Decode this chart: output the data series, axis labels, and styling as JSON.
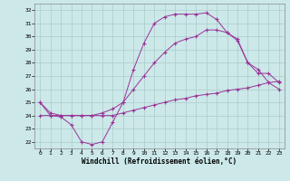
{
  "xlabel": "Windchill (Refroidissement éolien,°C)",
  "bg_color": "#cce8e8",
  "grid_color": "#aacccc",
  "line_color": "#993399",
  "ylim": [
    21.5,
    32.5
  ],
  "yticks": [
    22,
    23,
    24,
    25,
    26,
    27,
    28,
    29,
    30,
    31,
    32
  ],
  "xlim": [
    -0.5,
    23.5
  ],
  "xticks": [
    0,
    1,
    2,
    3,
    4,
    5,
    6,
    7,
    8,
    9,
    10,
    11,
    12,
    13,
    14,
    15,
    16,
    17,
    18,
    19,
    20,
    21,
    22,
    23
  ],
  "curve_a_x": [
    0,
    1,
    2,
    3,
    4,
    5,
    6,
    7,
    8,
    9,
    10,
    11,
    12,
    13,
    14,
    15,
    16,
    17,
    18,
    19,
    20,
    21,
    22,
    23
  ],
  "curve_a_y": [
    25.0,
    24.0,
    23.9,
    23.3,
    22.0,
    21.8,
    22.0,
    23.5,
    25.0,
    27.5,
    29.5,
    31.0,
    31.5,
    31.7,
    31.7,
    31.7,
    31.8,
    31.3,
    30.3,
    29.7,
    28.0,
    27.2,
    27.2,
    26.5
  ],
  "curve_b_x": [
    0,
    1,
    2,
    3,
    4,
    5,
    6,
    7,
    8,
    9,
    10,
    11,
    12,
    13,
    14,
    15,
    16,
    17,
    18,
    19,
    20,
    21,
    22,
    23
  ],
  "curve_b_y": [
    25.0,
    24.2,
    24.0,
    24.0,
    24.0,
    24.0,
    24.2,
    24.5,
    25.0,
    26.0,
    27.0,
    28.0,
    28.8,
    29.5,
    29.8,
    30.0,
    30.5,
    30.5,
    30.3,
    29.8,
    28.0,
    27.5,
    26.5,
    26.0
  ],
  "curve_c_x": [
    0,
    1,
    2,
    3,
    4,
    5,
    6,
    7,
    8,
    9,
    10,
    11,
    12,
    13,
    14,
    15,
    16,
    17,
    18,
    19,
    20,
    21,
    22,
    23
  ],
  "curve_c_y": [
    24.0,
    24.0,
    24.0,
    24.0,
    24.0,
    24.0,
    24.0,
    24.0,
    24.2,
    24.4,
    24.6,
    24.8,
    25.0,
    25.2,
    25.3,
    25.5,
    25.6,
    25.7,
    25.9,
    26.0,
    26.1,
    26.3,
    26.5,
    26.6
  ]
}
